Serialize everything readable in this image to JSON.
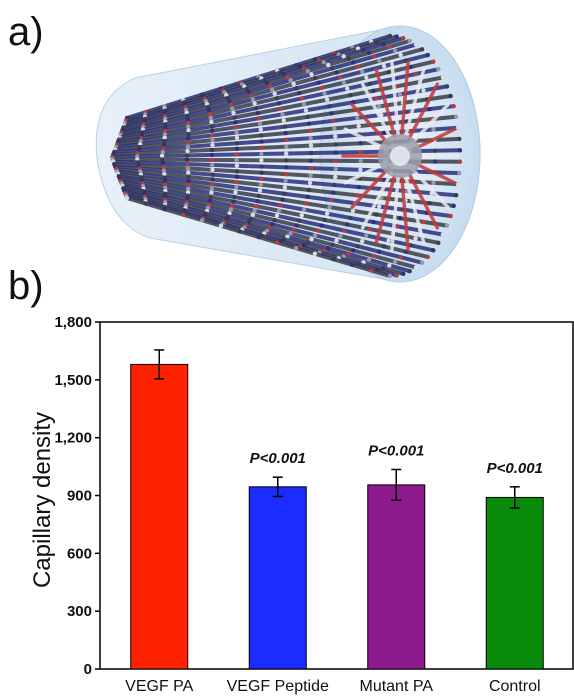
{
  "panels": {
    "a_label": "a)",
    "b_label": "b)"
  },
  "illustration": {
    "glass_color": "#cfe3f3",
    "fiber_colors": [
      "#2b2f7a",
      "#c23a3a",
      "#9fa3ad",
      "#e9ecf2",
      "#3a3d48"
    ]
  },
  "chart_data": {
    "type": "bar",
    "categories": [
      "VEGF PA",
      "VEGF Peptide",
      "Mutant PA",
      "Control"
    ],
    "values": [
      1580,
      945,
      955,
      890
    ],
    "errors": [
      75,
      50,
      80,
      55
    ],
    "colors": [
      "#ff2200",
      "#1a2cff",
      "#8e1b8e",
      "#0a8a0a"
    ],
    "annotations": [
      "",
      "P<0.001",
      "P<0.001",
      "P<0.001"
    ],
    "ylabel": "Capillary density",
    "xlabel": "",
    "ylim": [
      0,
      1800
    ],
    "yticks": [
      0,
      300,
      600,
      900,
      1200,
      1500,
      1800
    ],
    "yticklabels": [
      "0",
      "300",
      "600",
      "900",
      "1,200",
      "1,500",
      "1,800"
    ]
  }
}
